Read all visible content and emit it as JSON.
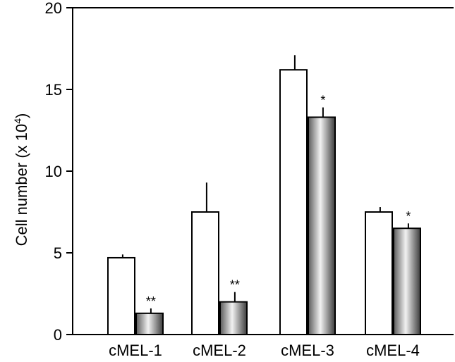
{
  "chart_data": {
    "type": "bar",
    "ylabel_main": "Cell number (x 10",
    "ylabel_sup": "4",
    "ylabel_close": ")",
    "ylim": [
      0,
      20
    ],
    "yticks": [
      0,
      5,
      10,
      15,
      20
    ],
    "categories": [
      "cMEL-1",
      "cMEL-2",
      "cMEL-3",
      "cMEL-4"
    ],
    "series": [
      {
        "style": "white",
        "values": [
          4.7,
          7.5,
          16.2,
          7.5
        ],
        "errors": [
          0.2,
          1.8,
          0.9,
          0.3
        ],
        "marks": [
          "",
          "",
          "",
          ""
        ]
      },
      {
        "style": "gradient-gray",
        "values": [
          1.3,
          2.0,
          13.3,
          6.5
        ],
        "errors": [
          0.3,
          0.6,
          0.6,
          0.3
        ],
        "marks": [
          "**",
          "**",
          "*",
          "*"
        ]
      }
    ],
    "grid": false,
    "legend": "none"
  }
}
